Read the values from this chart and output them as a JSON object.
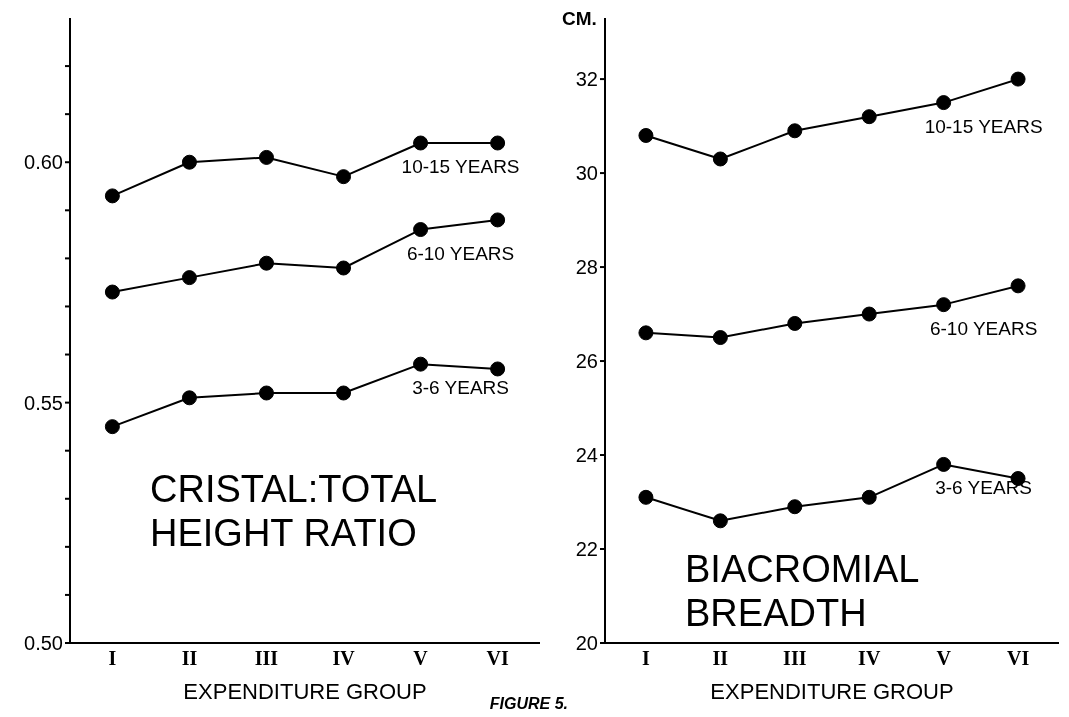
{
  "chart_data": [
    {
      "type": "line",
      "title": "CRISTAL:TOTAL HEIGHT RATIO",
      "xlabel": "EXPENDITURE GROUP",
      "categories": [
        "I",
        "II",
        "III",
        "IV",
        "V",
        "VI"
      ],
      "series": [
        {
          "name": "10-15 YEARS",
          "color": "#000000",
          "values": [
            0.593,
            0.6,
            0.601,
            0.597,
            0.604,
            0.604
          ]
        },
        {
          "name": "6-10 YEARS",
          "color": "#000000",
          "values": [
            0.573,
            0.576,
            0.579,
            0.578,
            0.586,
            0.588
          ]
        },
        {
          "name": "3-6 YEARS",
          "color": "#000000",
          "values": [
            0.545,
            0.551,
            0.552,
            0.552,
            0.558,
            0.557
          ]
        }
      ],
      "ylim": [
        0.5,
        0.63
      ],
      "yticks": [
        {
          "value": 0.5,
          "label": "0.50"
        },
        {
          "value": 0.51,
          "label": null
        },
        {
          "value": 0.52,
          "label": null
        },
        {
          "value": 0.53,
          "label": null
        },
        {
          "value": 0.54,
          "label": null
        },
        {
          "value": 0.55,
          "label": "0.55"
        },
        {
          "value": 0.56,
          "label": null
        },
        {
          "value": 0.57,
          "label": null
        },
        {
          "value": 0.58,
          "label": null
        },
        {
          "value": 0.59,
          "label": null
        },
        {
          "value": 0.6,
          "label": "0.60"
        },
        {
          "value": 0.61,
          "label": null
        },
        {
          "value": 0.62,
          "label": null
        }
      ],
      "grid": false,
      "legend": false,
      "marker": "circle",
      "line_style": "solid",
      "annotations": [
        "FIGURE 5."
      ]
    },
    {
      "type": "line",
      "title": "BIACROMIAL BREADTH",
      "xlabel": "EXPENDITURE GROUP",
      "ylabel": "CM.",
      "categories": [
        "I",
        "II",
        "III",
        "IV",
        "V",
        "VI"
      ],
      "series": [
        {
          "name": "10-15 YEARS",
          "color": "#000000",
          "values": [
            30.8,
            30.3,
            30.9,
            31.2,
            31.5,
            32.0
          ]
        },
        {
          "name": "6-10 YEARS",
          "color": "#000000",
          "values": [
            26.6,
            26.5,
            26.8,
            27.0,
            27.2,
            27.6
          ]
        },
        {
          "name": "3-6 YEARS",
          "color": "#000000",
          "values": [
            23.1,
            22.6,
            22.9,
            23.1,
            23.8,
            23.5
          ]
        }
      ],
      "ylim": [
        20,
        33.3
      ],
      "yticks": [
        20,
        22,
        24,
        26,
        28,
        30,
        32
      ],
      "grid": false,
      "legend": false,
      "marker": "circle",
      "line_style": "solid"
    }
  ]
}
